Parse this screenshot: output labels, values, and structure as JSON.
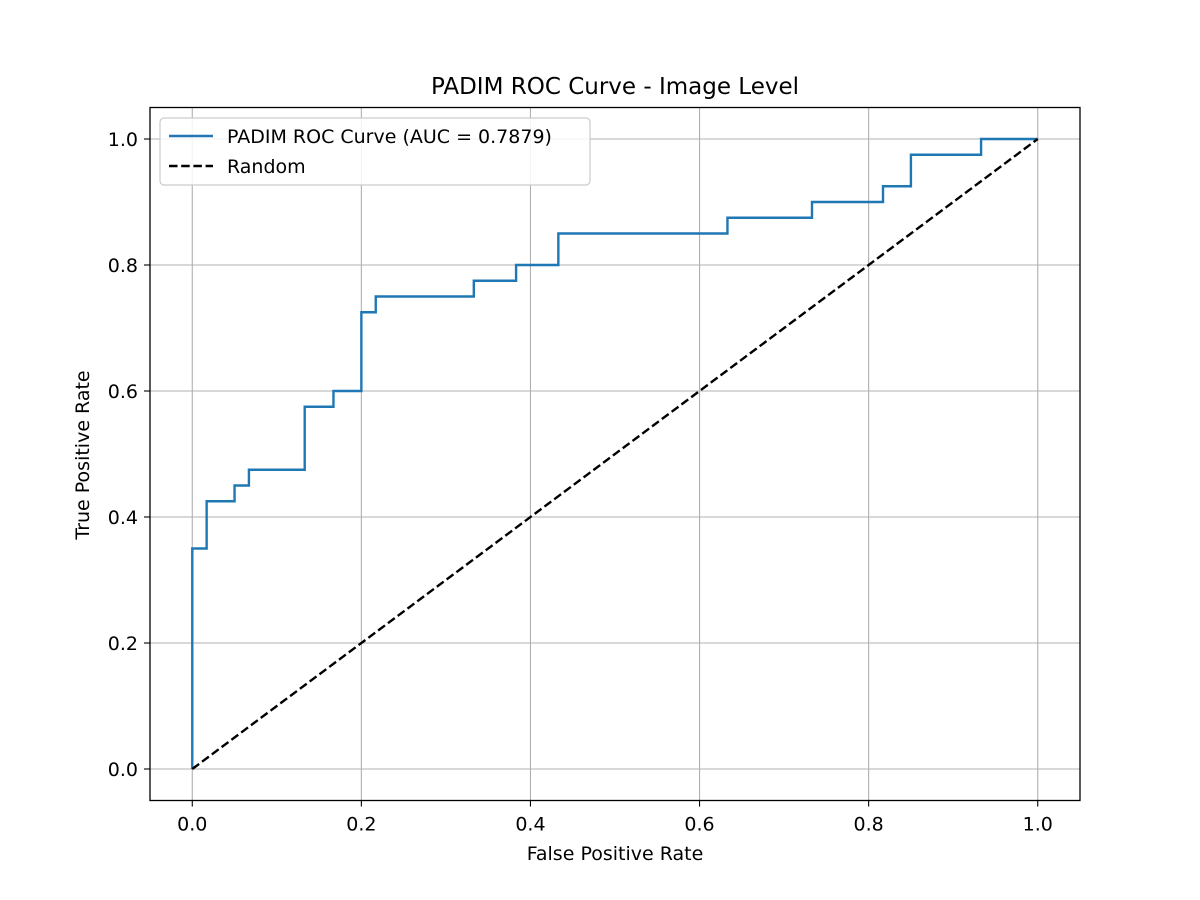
{
  "chart_data": {
    "type": "line",
    "title": "PADIM ROC Curve - Image Level",
    "xlabel": "False Positive Rate",
    "ylabel": "True Positive Rate",
    "xlim": [
      -0.05,
      1.05
    ],
    "ylim": [
      -0.05,
      1.05
    ],
    "xticks": [
      0.0,
      0.2,
      0.4,
      0.6,
      0.8,
      1.0
    ],
    "yticks": [
      0.0,
      0.2,
      0.4,
      0.6,
      0.8,
      1.0
    ],
    "xtick_labels": [
      "0.0",
      "0.2",
      "0.4",
      "0.6",
      "0.8",
      "1.0"
    ],
    "ytick_labels": [
      "0.0",
      "0.2",
      "0.4",
      "0.6",
      "0.8",
      "1.0"
    ],
    "grid": true,
    "legend_position": "top-left",
    "series": [
      {
        "name": "PADIM ROC Curve (AUC = 0.7879)",
        "color": "#1f77b4",
        "style": "solid",
        "x": [
          0.0,
          0.0,
          0.017,
          0.017,
          0.05,
          0.05,
          0.067,
          0.067,
          0.133,
          0.133,
          0.167,
          0.167,
          0.2,
          0.2,
          0.217,
          0.217,
          0.333,
          0.333,
          0.383,
          0.383,
          0.433,
          0.433,
          0.633,
          0.633,
          0.733,
          0.733,
          0.817,
          0.817,
          0.85,
          0.85,
          0.933,
          0.933,
          1.0
        ],
        "y": [
          0.0,
          0.35,
          0.35,
          0.425,
          0.425,
          0.45,
          0.45,
          0.475,
          0.475,
          0.575,
          0.575,
          0.6,
          0.6,
          0.725,
          0.725,
          0.75,
          0.75,
          0.775,
          0.775,
          0.8,
          0.8,
          0.85,
          0.85,
          0.875,
          0.875,
          0.9,
          0.9,
          0.925,
          0.925,
          0.975,
          0.975,
          1.0,
          1.0
        ]
      },
      {
        "name": "Random",
        "color": "#000000",
        "style": "dashed",
        "x": [
          0.0,
          1.0
        ],
        "y": [
          0.0,
          1.0
        ]
      }
    ]
  }
}
